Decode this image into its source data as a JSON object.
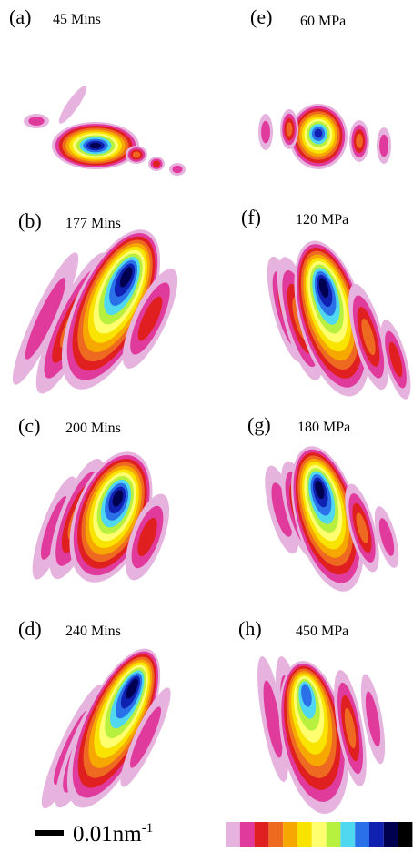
{
  "panels": [
    {
      "letter": "(a)",
      "label": "45 Mins"
    },
    {
      "letter": "(e)",
      "label": "60 MPa"
    },
    {
      "letter": "(b)",
      "label": "177 Mins"
    },
    {
      "letter": "(f)",
      "label": "120 MPa"
    },
    {
      "letter": "(c)",
      "label": "200 Mins"
    },
    {
      "letter": "(g)",
      "label": "180 MPa"
    },
    {
      "letter": "(d)",
      "label": "240 Mins"
    },
    {
      "letter": "(h)",
      "label": "450 MPa"
    }
  ],
  "scale_bar": {
    "text": "0.01nm",
    "superscript": "-1"
  }
}
